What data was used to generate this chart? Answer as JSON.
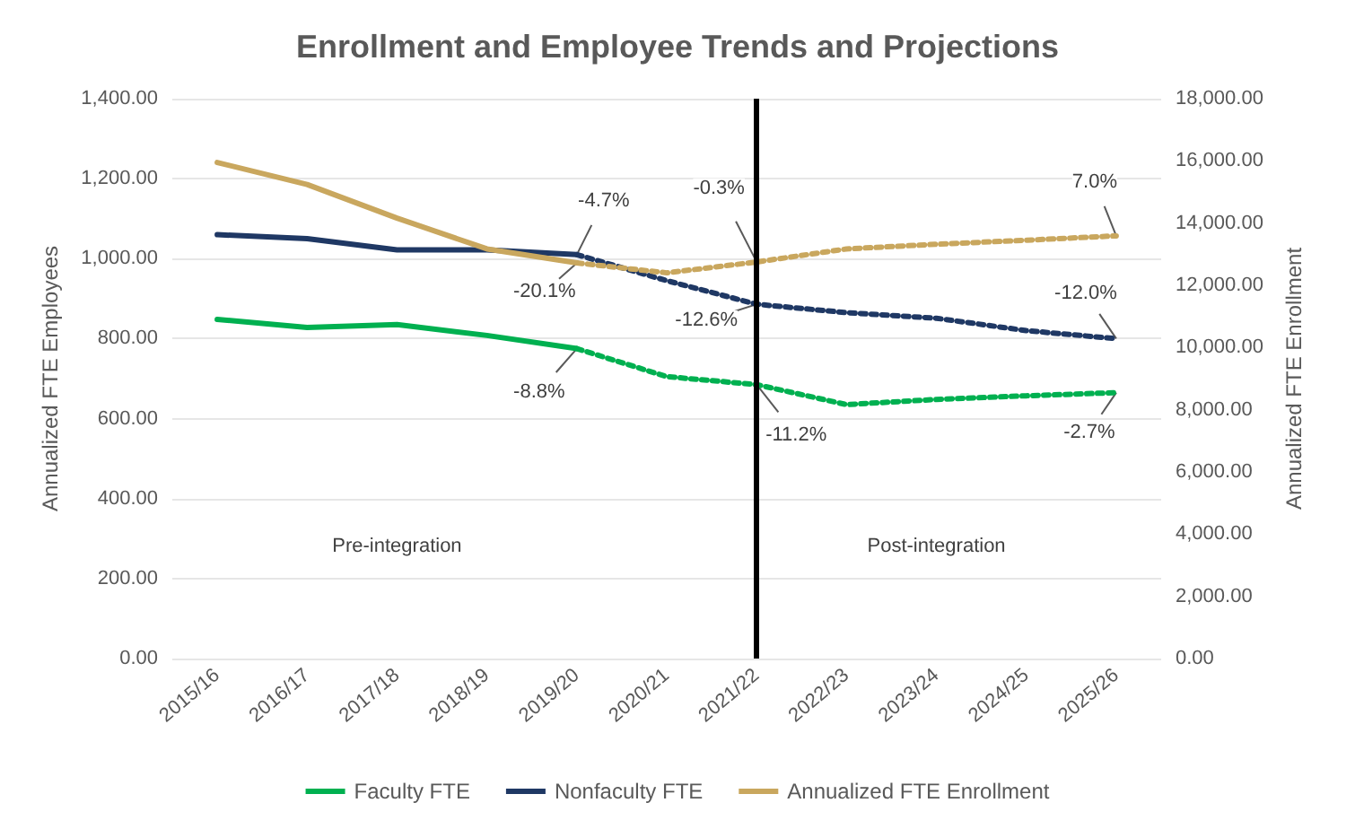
{
  "chart_data": {
    "type": "line",
    "title": "Enrollment and Employee Trends and Projections",
    "ylabel": "Annualized FTE Employees",
    "y2label": "Annualized FTE Enrollment",
    "categories": [
      "2015/16",
      "2016/17",
      "2017/18",
      "2018/19",
      "2019/20",
      "2020/21",
      "2021/22",
      "2022/23",
      "2023/24",
      "2024/25",
      "2025/26"
    ],
    "series": [
      {
        "name": "Faculty FTE",
        "color": "#00b050",
        "line_style": "solid",
        "values": [
          848,
          828,
          835,
          808,
          775,
          null,
          null,
          null,
          null,
          null,
          null
        ]
      },
      {
        "name": "Nonfaculty FTE",
        "color": "#1f3864",
        "line_style": "solid",
        "values": [
          1060,
          1050,
          1022,
          1022,
          1010,
          null,
          null,
          null,
          null,
          null,
          null
        ]
      },
      {
        "name": "Annualized FTE Enrollment",
        "color": "#c9a75e",
        "line_style": "solid",
        "axis": "y2",
        "values": [
          15950,
          15240,
          14160,
          13170,
          12720,
          null,
          null,
          null,
          null,
          null,
          null
        ]
      },
      {
        "color": "#00b050",
        "line_style": "dotted",
        "values": [
          null,
          null,
          null,
          null,
          775,
          705,
          685,
          635,
          648,
          657,
          665
        ]
      },
      {
        "color": "#1f3864",
        "line_style": "dotted",
        "values": [
          null,
          null,
          null,
          null,
          1010,
          945,
          886,
          865,
          851,
          820,
          800
        ]
      },
      {
        "color": "#c9a75e",
        "line_style": "dotted",
        "axis": "y2",
        "values": [
          null,
          null,
          null,
          null,
          12720,
          12400,
          12750,
          13170,
          13320,
          13450,
          13590
        ]
      }
    ],
    "ylim": [
      0,
      1400
    ],
    "yticks": [
      {
        "value": 0,
        "label": "0.00"
      },
      {
        "value": 200,
        "label": "200.00"
      },
      {
        "value": 400,
        "label": "400.00"
      },
      {
        "value": 600,
        "label": "600.00"
      },
      {
        "value": 800,
        "label": "800.00"
      },
      {
        "value": 1000,
        "label": "1,000.00"
      },
      {
        "value": 1200,
        "label": "1,200.00"
      },
      {
        "value": 1400,
        "label": "1,400.00"
      }
    ],
    "y2lim": [
      0,
      18000
    ],
    "y2ticks": [
      {
        "value": 0,
        "label": "0.00"
      },
      {
        "value": 2000,
        "label": "2,000.00"
      },
      {
        "value": 4000,
        "label": "4,000.00"
      },
      {
        "value": 6000,
        "label": "6,000.00"
      },
      {
        "value": 8000,
        "label": "8,000.00"
      },
      {
        "value": 10000,
        "label": "10,000.00"
      },
      {
        "value": 12000,
        "label": "12,000.00"
      },
      {
        "value": 14000,
        "label": "14,000.00"
      },
      {
        "value": 16000,
        "label": "16,000.00"
      },
      {
        "value": 18000,
        "label": "18,000.00"
      }
    ],
    "ref_lines": [
      {
        "axis": "x",
        "value": "2021/22",
        "color": "#000000"
      }
    ],
    "annotations": [
      {
        "text": "-4.7%",
        "x": "2019/20",
        "y": 1010
      },
      {
        "text": "-20.1%",
        "x": "2019/20",
        "y": 989
      },
      {
        "text": "-8.8%",
        "x": "2019/20",
        "y": 775
      },
      {
        "text": "-0.3%",
        "x": "2021/22",
        "y": 992
      },
      {
        "text": "-12.6%",
        "x": "2021/22",
        "y": 886
      },
      {
        "text": "-11.2%",
        "x": "2021/22",
        "y": 685
      },
      {
        "text": "7.0%",
        "x": "2025/26",
        "y": 1057
      },
      {
        "text": "-12.0%",
        "x": "2025/26",
        "y": 800
      },
      {
        "text": "-2.7%",
        "x": "2025/26",
        "y": 665
      },
      "Pre-integration",
      "Post-integration"
    ],
    "grid": "y",
    "legend": "bottom",
    "marker": "none"
  }
}
